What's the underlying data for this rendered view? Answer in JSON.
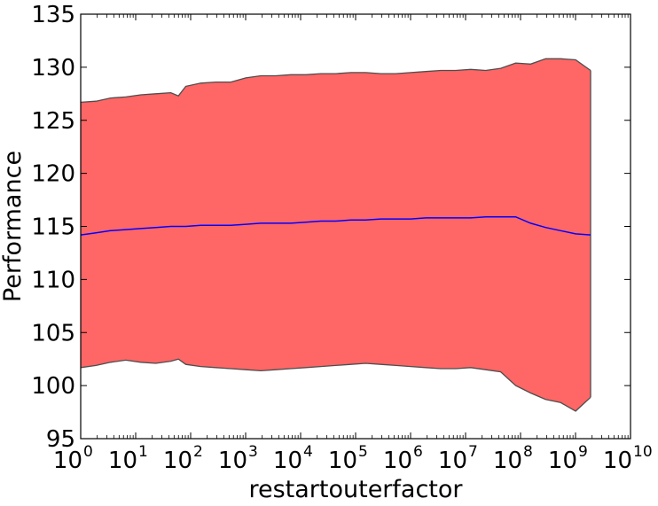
{
  "chart_data": {
    "type": "area",
    "title": "",
    "xlabel": "restartouterfactor",
    "ylabel": "Performance",
    "x_scale": "log",
    "x_axis_exponent_base": "10",
    "xlim": [
      1,
      10000000000
    ],
    "x_tick_exponents": [
      "0",
      "1",
      "2",
      "3",
      "4",
      "5",
      "6",
      "7",
      "8",
      "9",
      "10"
    ],
    "ylim": [
      95,
      135
    ],
    "y_ticks": [
      "95",
      "100",
      "105",
      "110",
      "115",
      "120",
      "125",
      "130",
      "135"
    ],
    "grid": false,
    "legend": "none",
    "colors": {
      "band_fill": "#ff6666",
      "band_edge": "#4d4d4d",
      "mean_line": "#0000ff",
      "axes": "#000000"
    },
    "series": [
      {
        "name": "",
        "style": "band",
        "x": [
          1,
          1.9,
          3.5,
          6.6,
          12.4,
          23.2,
          43.5,
          60,
          81.5,
          152.9,
          287,
          537.6,
          1007.1,
          1887,
          3535.4,
          6624.7,
          12413,
          23258,
          43577,
          81646,
          152978,
          286629,
          537051,
          1006258,
          1885392,
          3532560,
          6618900,
          12401100,
          23235200,
          43535200,
          81569100,
          152824000,
          286339000,
          536488000,
          1005200000,
          1883400000
        ],
        "upper": [
          126.7,
          126.8,
          127.1,
          127.2,
          127.4,
          127.5,
          127.6,
          127.3,
          128.2,
          128.5,
          128.6,
          128.6,
          129.0,
          129.2,
          129.2,
          129.3,
          129.3,
          129.4,
          129.4,
          129.5,
          129.5,
          129.4,
          129.4,
          129.5,
          129.6,
          129.7,
          129.7,
          129.8,
          129.7,
          129.9,
          130.4,
          130.3,
          130.8,
          130.8,
          130.7,
          129.7
        ],
        "lower": [
          101.7,
          101.9,
          102.2,
          102.4,
          102.2,
          102.1,
          102.3,
          102.5,
          102.0,
          101.8,
          101.7,
          101.6,
          101.5,
          101.4,
          101.5,
          101.6,
          101.7,
          101.8,
          101.9,
          102.0,
          102.1,
          102.0,
          101.9,
          101.8,
          101.7,
          101.6,
          101.6,
          101.7,
          101.5,
          101.3,
          100.0,
          99.3,
          98.7,
          98.4,
          97.6,
          98.9
        ]
      },
      {
        "name": "",
        "style": "line",
        "x": [
          1,
          1.9,
          3.5,
          6.6,
          12.4,
          23.2,
          43.5,
          81.5,
          152.9,
          287,
          537.6,
          1007.1,
          1887,
          3535.4,
          6624.7,
          12413,
          23258,
          43577,
          81646,
          152978,
          286629,
          537051,
          1006258,
          1885392,
          3532560,
          6618900,
          12401100,
          23235200,
          43535200,
          81569100,
          152824000,
          286339000,
          536488000,
          1005200000,
          1883400000
        ],
        "values": [
          114.2,
          114.4,
          114.6,
          114.7,
          114.8,
          114.9,
          115.0,
          115.0,
          115.1,
          115.1,
          115.1,
          115.2,
          115.3,
          115.3,
          115.3,
          115.4,
          115.5,
          115.5,
          115.6,
          115.6,
          115.7,
          115.7,
          115.7,
          115.8,
          115.8,
          115.8,
          115.8,
          115.9,
          115.9,
          115.9,
          115.3,
          114.9,
          114.6,
          114.3,
          114.2
        ]
      }
    ]
  }
}
